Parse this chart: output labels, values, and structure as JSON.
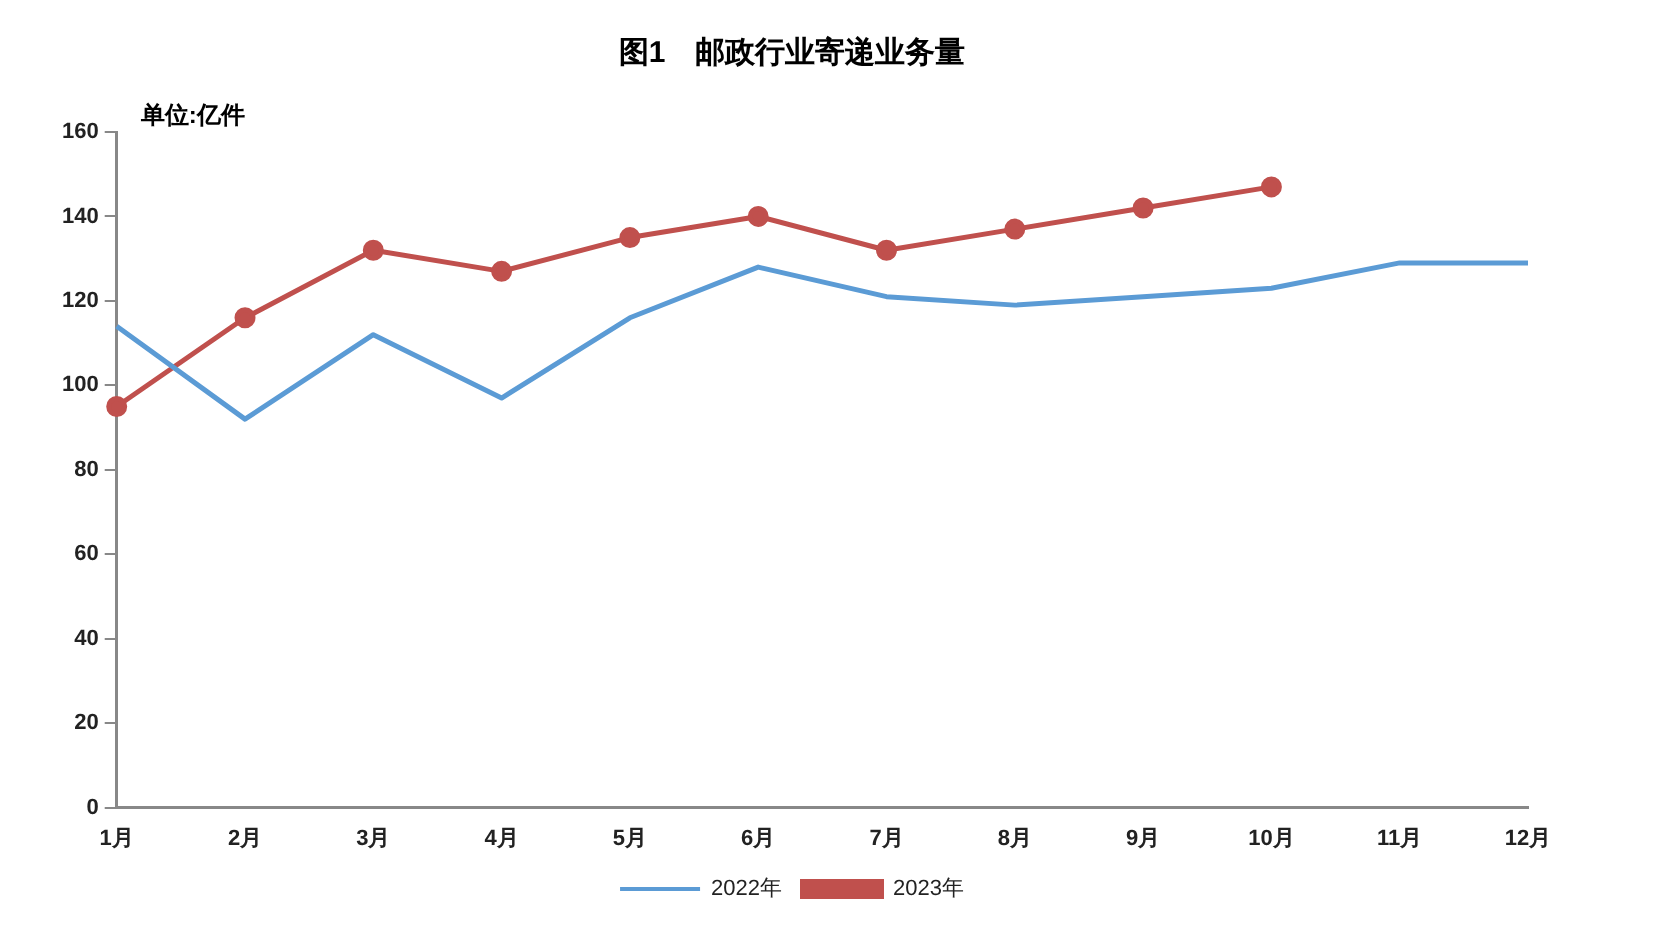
{
  "chart_data": {
    "type": "line",
    "title": "图1　邮政行业寄递业务量",
    "ylabel": "单位:亿件",
    "categories": [
      "1月",
      "2月",
      "3月",
      "4月",
      "5月",
      "6月",
      "7月",
      "8月",
      "9月",
      "10月",
      "11月",
      "12月"
    ],
    "series": [
      {
        "name": "2022年",
        "color": "#5b9bd5",
        "marker": "none",
        "values": [
          114,
          92,
          112,
          97,
          116,
          128,
          121,
          119,
          121,
          123,
          129,
          129
        ]
      },
      {
        "name": "2023年",
        "color": "#c0504d",
        "marker": "circle",
        "values": [
          95,
          116,
          132,
          127,
          135,
          140,
          132,
          137,
          142,
          147,
          null,
          null
        ]
      }
    ],
    "ylim": [
      0,
      160
    ],
    "yticks": [
      0,
      20,
      40,
      60,
      80,
      100,
      120,
      140,
      160
    ],
    "grid": false,
    "legend": "bottom",
    "line_style": "solid"
  }
}
